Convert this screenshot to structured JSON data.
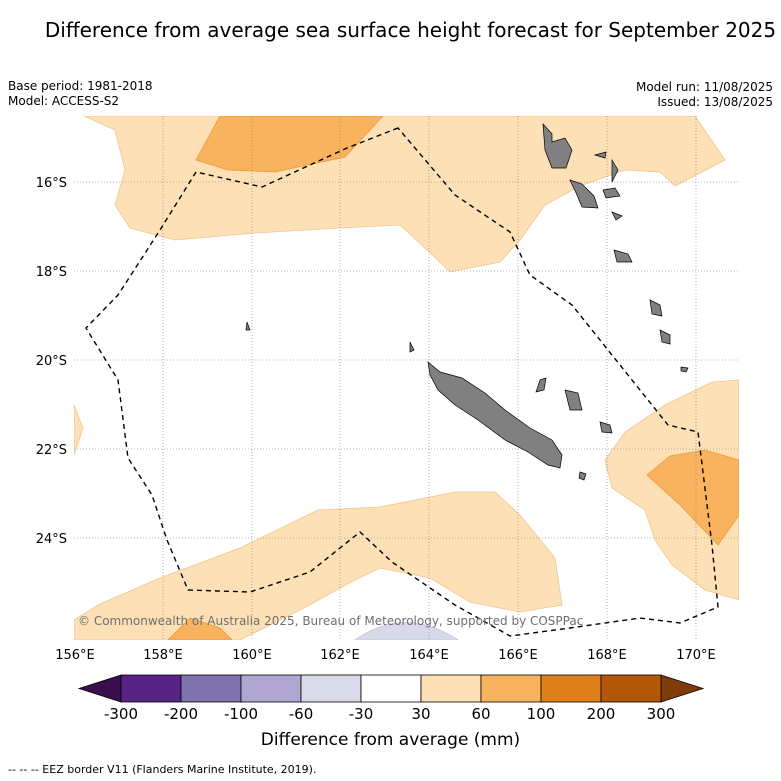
{
  "title": "Difference from average sea surface height forecast for September 2025",
  "meta": {
    "base_period": "Base period: 1981-2018",
    "model": "Model: ACCESS-S2",
    "model_run": "Model run: 11/08/2025",
    "issued": "Issued: 13/08/2025"
  },
  "axes": {
    "lat_labels": [
      "16°S",
      "18°S",
      "20°S",
      "22°S",
      "24°S"
    ],
    "lon_labels": [
      "156°E",
      "158°E",
      "160°E",
      "162°E",
      "164°E",
      "166°E",
      "168°E",
      "170°E"
    ]
  },
  "copyright": "© Commonwealth of Australia 2025, Bureau of Meteorology, supported by COSPPac",
  "colorbar": {
    "label": "Difference from average (mm)",
    "ticks": [
      "-300",
      "-200",
      "-100",
      "-60",
      "-30",
      "30",
      "60",
      "100",
      "200",
      "300"
    ],
    "colors": [
      "#3b0f4e",
      "#572485",
      "#8073ad",
      "#afa7d1",
      "#d9d9ea",
      "#ffffff",
      "#fde0b6",
      "#f9b35e",
      "#e0801b",
      "#b35808",
      "#7f3b08"
    ]
  },
  "footnote": "-- -- -- EEZ border V11 (Flanders Marine Institute, 2019).",
  "legend_swatch": "-- -- --"
}
